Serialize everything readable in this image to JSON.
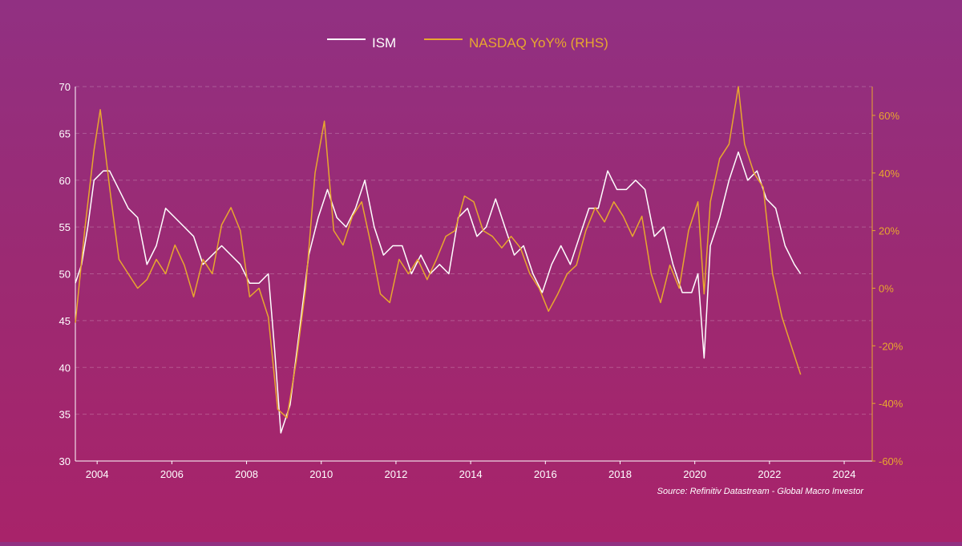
{
  "chart_data": {
    "type": "line",
    "source": "Source: Refinitiv Datastream - Global Macro Investor",
    "legend_position": "top-center",
    "grid": "horizontal-dashed",
    "colors": {
      "ISM": "#ffffff",
      "NASDAQ": "#e8a72e",
      "axis_left": "#ffffff",
      "axis_right": "#e8a72e"
    },
    "x_axis": {
      "type": "date",
      "range": [
        "2003-06",
        "2024-10"
      ],
      "ticks": [
        "2004",
        "2006",
        "2008",
        "2010",
        "2012",
        "2014",
        "2016",
        "2018",
        "2020",
        "2022",
        "2024"
      ]
    },
    "y_left": {
      "range": [
        30,
        70
      ],
      "ticks": [
        "30",
        "35",
        "40",
        "45",
        "50",
        "55",
        "60",
        "65",
        "70"
      ]
    },
    "y_right": {
      "range": [
        -60,
        70
      ],
      "ticks": [
        "-60%",
        "-40%",
        "-20%",
        "0%",
        "20%",
        "40%",
        "60%"
      ]
    },
    "series": [
      {
        "name": "ISM",
        "axis": "left",
        "points": [
          [
            "2003-06",
            49
          ],
          [
            "2003-08",
            51
          ],
          [
            "2003-10",
            55
          ],
          [
            "2003-12",
            60
          ],
          [
            "2004-03",
            61
          ],
          [
            "2004-05",
            61
          ],
          [
            "2004-08",
            59
          ],
          [
            "2004-11",
            57
          ],
          [
            "2005-02",
            56
          ],
          [
            "2005-05",
            51
          ],
          [
            "2005-08",
            53
          ],
          [
            "2005-11",
            57
          ],
          [
            "2006-02",
            56
          ],
          [
            "2006-05",
            55
          ],
          [
            "2006-08",
            54
          ],
          [
            "2006-11",
            51
          ],
          [
            "2007-02",
            52
          ],
          [
            "2007-05",
            53
          ],
          [
            "2007-08",
            52
          ],
          [
            "2007-11",
            51
          ],
          [
            "2008-02",
            49
          ],
          [
            "2008-05",
            49
          ],
          [
            "2008-08",
            50
          ],
          [
            "2008-10",
            42
          ],
          [
            "2008-12",
            33
          ],
          [
            "2009-03",
            36
          ],
          [
            "2009-06",
            44
          ],
          [
            "2009-09",
            52
          ],
          [
            "2009-12",
            56
          ],
          [
            "2010-03",
            59
          ],
          [
            "2010-06",
            56
          ],
          [
            "2010-09",
            55
          ],
          [
            "2010-12",
            57
          ],
          [
            "2011-03",
            60
          ],
          [
            "2011-06",
            55
          ],
          [
            "2011-09",
            52
          ],
          [
            "2011-12",
            53
          ],
          [
            "2012-03",
            53
          ],
          [
            "2012-06",
            50
          ],
          [
            "2012-09",
            52
          ],
          [
            "2012-12",
            50
          ],
          [
            "2013-03",
            51
          ],
          [
            "2013-06",
            50
          ],
          [
            "2013-09",
            56
          ],
          [
            "2013-12",
            57
          ],
          [
            "2014-03",
            54
          ],
          [
            "2014-06",
            55
          ],
          [
            "2014-09",
            58
          ],
          [
            "2014-12",
            55
          ],
          [
            "2015-03",
            52
          ],
          [
            "2015-06",
            53
          ],
          [
            "2015-09",
            50
          ],
          [
            "2015-12",
            48
          ],
          [
            "2016-03",
            51
          ],
          [
            "2016-06",
            53
          ],
          [
            "2016-09",
            51
          ],
          [
            "2016-12",
            54
          ],
          [
            "2017-03",
            57
          ],
          [
            "2017-06",
            57
          ],
          [
            "2017-09",
            61
          ],
          [
            "2017-12",
            59
          ],
          [
            "2018-03",
            59
          ],
          [
            "2018-06",
            60
          ],
          [
            "2018-09",
            59
          ],
          [
            "2018-12",
            54
          ],
          [
            "2019-03",
            55
          ],
          [
            "2019-06",
            51
          ],
          [
            "2019-09",
            48
          ],
          [
            "2019-12",
            48
          ],
          [
            "2020-02",
            50
          ],
          [
            "2020-04",
            41
          ],
          [
            "2020-06",
            53
          ],
          [
            "2020-09",
            56
          ],
          [
            "2020-12",
            60
          ],
          [
            "2021-03",
            63
          ],
          [
            "2021-06",
            60
          ],
          [
            "2021-09",
            61
          ],
          [
            "2021-12",
            58
          ],
          [
            "2022-03",
            57
          ],
          [
            "2022-06",
            53
          ],
          [
            "2022-09",
            51
          ],
          [
            "2022-11",
            50
          ]
        ]
      },
      {
        "name": "NASDAQ YoY% (RHS)",
        "axis": "right",
        "points": [
          [
            "2003-06",
            -12
          ],
          [
            "2003-09",
            20
          ],
          [
            "2003-12",
            48
          ],
          [
            "2004-02",
            62
          ],
          [
            "2004-05",
            35
          ],
          [
            "2004-08",
            10
          ],
          [
            "2004-11",
            5
          ],
          [
            "2005-02",
            0
          ],
          [
            "2005-05",
            3
          ],
          [
            "2005-08",
            10
          ],
          [
            "2005-11",
            5
          ],
          [
            "2006-02",
            15
          ],
          [
            "2006-05",
            8
          ],
          [
            "2006-08",
            -3
          ],
          [
            "2006-11",
            10
          ],
          [
            "2007-02",
            5
          ],
          [
            "2007-05",
            22
          ],
          [
            "2007-08",
            28
          ],
          [
            "2007-11",
            20
          ],
          [
            "2008-02",
            -3
          ],
          [
            "2008-05",
            0
          ],
          [
            "2008-08",
            -10
          ],
          [
            "2008-11",
            -42
          ],
          [
            "2009-02",
            -45
          ],
          [
            "2009-05",
            -25
          ],
          [
            "2009-08",
            0
          ],
          [
            "2009-11",
            40
          ],
          [
            "2010-02",
            58
          ],
          [
            "2010-05",
            20
          ],
          [
            "2010-08",
            15
          ],
          [
            "2010-11",
            25
          ],
          [
            "2011-02",
            30
          ],
          [
            "2011-05",
            15
          ],
          [
            "2011-08",
            -2
          ],
          [
            "2011-11",
            -5
          ],
          [
            "2012-02",
            10
          ],
          [
            "2012-05",
            5
          ],
          [
            "2012-08",
            10
          ],
          [
            "2012-11",
            3
          ],
          [
            "2013-02",
            10
          ],
          [
            "2013-05",
            18
          ],
          [
            "2013-08",
            20
          ],
          [
            "2013-11",
            32
          ],
          [
            "2014-02",
            30
          ],
          [
            "2014-05",
            20
          ],
          [
            "2014-08",
            18
          ],
          [
            "2014-11",
            14
          ],
          [
            "2015-02",
            18
          ],
          [
            "2015-05",
            14
          ],
          [
            "2015-08",
            5
          ],
          [
            "2015-11",
            0
          ],
          [
            "2016-02",
            -8
          ],
          [
            "2016-05",
            -2
          ],
          [
            "2016-08",
            5
          ],
          [
            "2016-11",
            8
          ],
          [
            "2017-02",
            20
          ],
          [
            "2017-05",
            28
          ],
          [
            "2017-08",
            23
          ],
          [
            "2017-11",
            30
          ],
          [
            "2018-02",
            25
          ],
          [
            "2018-05",
            18
          ],
          [
            "2018-08",
            25
          ],
          [
            "2018-11",
            5
          ],
          [
            "2019-02",
            -5
          ],
          [
            "2019-05",
            8
          ],
          [
            "2019-08",
            0
          ],
          [
            "2019-11",
            20
          ],
          [
            "2020-02",
            30
          ],
          [
            "2020-04",
            -2
          ],
          [
            "2020-06",
            30
          ],
          [
            "2020-09",
            45
          ],
          [
            "2020-12",
            50
          ],
          [
            "2021-03",
            70
          ],
          [
            "2021-05",
            50
          ],
          [
            "2021-08",
            40
          ],
          [
            "2021-11",
            35
          ],
          [
            "2022-02",
            5
          ],
          [
            "2022-05",
            -10
          ],
          [
            "2022-08",
            -20
          ],
          [
            "2022-11",
            -30
          ]
        ]
      }
    ]
  }
}
